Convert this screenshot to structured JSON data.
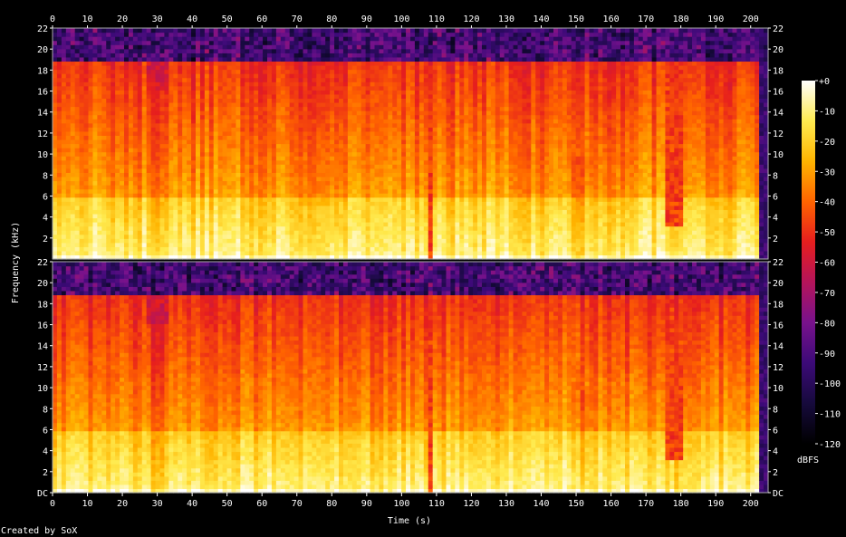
{
  "chart_data": {
    "type": "heatmap",
    "subtype": "spectrogram",
    "xlabel": "Time (s)",
    "ylabel": "Frequency (kHz)",
    "xlim": [
      0,
      205
    ],
    "ylim": [
      0,
      22
    ],
    "x_ticks": [
      "0",
      "10",
      "20",
      "30",
      "40",
      "50",
      "60",
      "70",
      "80",
      "90",
      "100",
      "110",
      "120",
      "130",
      "140",
      "150",
      "160",
      "170",
      "180",
      "190",
      "200"
    ],
    "y_ticks_top": [
      "2",
      "4",
      "6",
      "8",
      "10",
      "12",
      "14",
      "16",
      "18",
      "20",
      "22"
    ],
    "y_ticks_bottom": [
      "DC",
      "2",
      "4",
      "6",
      "8",
      "10",
      "12",
      "14",
      "16",
      "18",
      "20",
      "22"
    ],
    "channels": 2,
    "lowpass_cutoff_khz": 19,
    "shelf_khz": 6,
    "dips_s": [
      {
        "start": 27,
        "end": 33,
        "cut_khz": 16,
        "level": 0.45
      },
      {
        "start": 107.5,
        "end": 108.5,
        "cut_khz": 0,
        "level": 0.55
      },
      {
        "start": 148,
        "end": 154,
        "cut_khz": 10,
        "level": 0.65
      },
      {
        "start": 176,
        "end": 181,
        "cut_khz": 3,
        "level": 0.55
      },
      {
        "start": 202,
        "end": 205,
        "cut_khz": 0,
        "level": 0.15
      }
    ],
    "colorbar": {
      "unit": "dBFS",
      "range": [
        -120,
        0
      ],
      "ticks": [
        "+0",
        "-10",
        "-20",
        "-30",
        "-40",
        "-50",
        "-60",
        "-70",
        "-80",
        "-90",
        "-100",
        "-110",
        "-120"
      ],
      "colors": [
        "#000000",
        "#160a3c",
        "#3c0a78",
        "#78128c",
        "#b4145a",
        "#e61e1e",
        "#ff6400",
        "#ffb400",
        "#ffeb50",
        "#ffffff"
      ]
    }
  },
  "footer": {
    "credit": "Created by SoX"
  }
}
